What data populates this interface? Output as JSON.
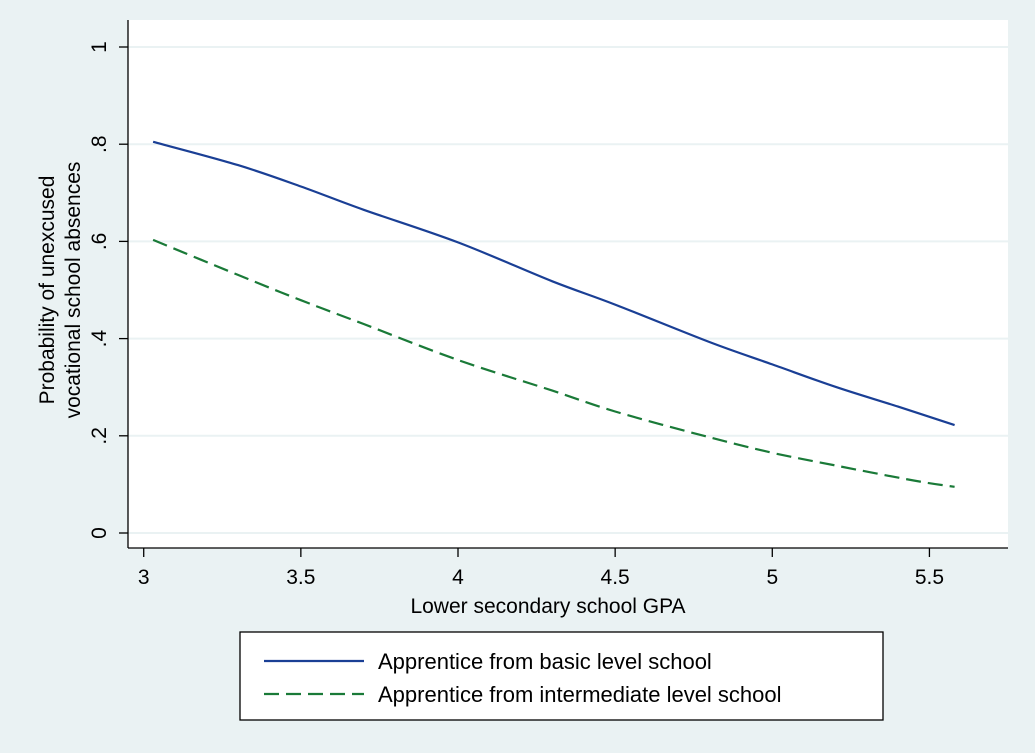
{
  "chart_data": {
    "type": "line",
    "title": "",
    "xlabel": "Lower secondary school GPA",
    "ylabel_lines": [
      "Probability of unexcused",
      "vocational school absences"
    ],
    "xlim": [
      2.95,
      5.75
    ],
    "ylim": [
      0,
      1
    ],
    "x_ticks": [
      3,
      3.5,
      4,
      4.5,
      5,
      5.5
    ],
    "x_tick_labels": [
      "3",
      "3.5",
      "4",
      "4.5",
      "5",
      "5.5"
    ],
    "y_ticks": [
      0,
      0.2,
      0.4,
      0.6,
      0.8,
      1
    ],
    "y_tick_labels": [
      "0",
      ".2",
      ".4",
      ".6",
      ".8",
      "1"
    ],
    "grid": "horizontal",
    "legend_position": "bottom",
    "colors": {
      "outer_background": "#eaf2f3",
      "plot_background": "#ffffff",
      "grid": "#eaf2f3",
      "axis": "#000000"
    },
    "series": [
      {
        "name": "Apprentice from basic level school",
        "color": "#1a3f95",
        "dash": "solid",
        "x": [
          3.03,
          3.3,
          3.5,
          3.7,
          4.0,
          4.3,
          4.5,
          4.8,
          5.0,
          5.2,
          5.4,
          5.58
        ],
        "y": [
          0.805,
          0.757,
          0.713,
          0.665,
          0.598,
          0.518,
          0.47,
          0.393,
          0.347,
          0.301,
          0.26,
          0.222
        ]
      },
      {
        "name": "Apprentice from intermediate level school",
        "color": "#1a7a38",
        "dash": "dashed",
        "x": [
          3.03,
          3.3,
          3.5,
          3.7,
          4.0,
          4.3,
          4.5,
          4.8,
          5.0,
          5.2,
          5.45,
          5.58
        ],
        "y": [
          0.603,
          0.531,
          0.479,
          0.43,
          0.356,
          0.293,
          0.25,
          0.197,
          0.165,
          0.139,
          0.108,
          0.095
        ]
      }
    ]
  }
}
